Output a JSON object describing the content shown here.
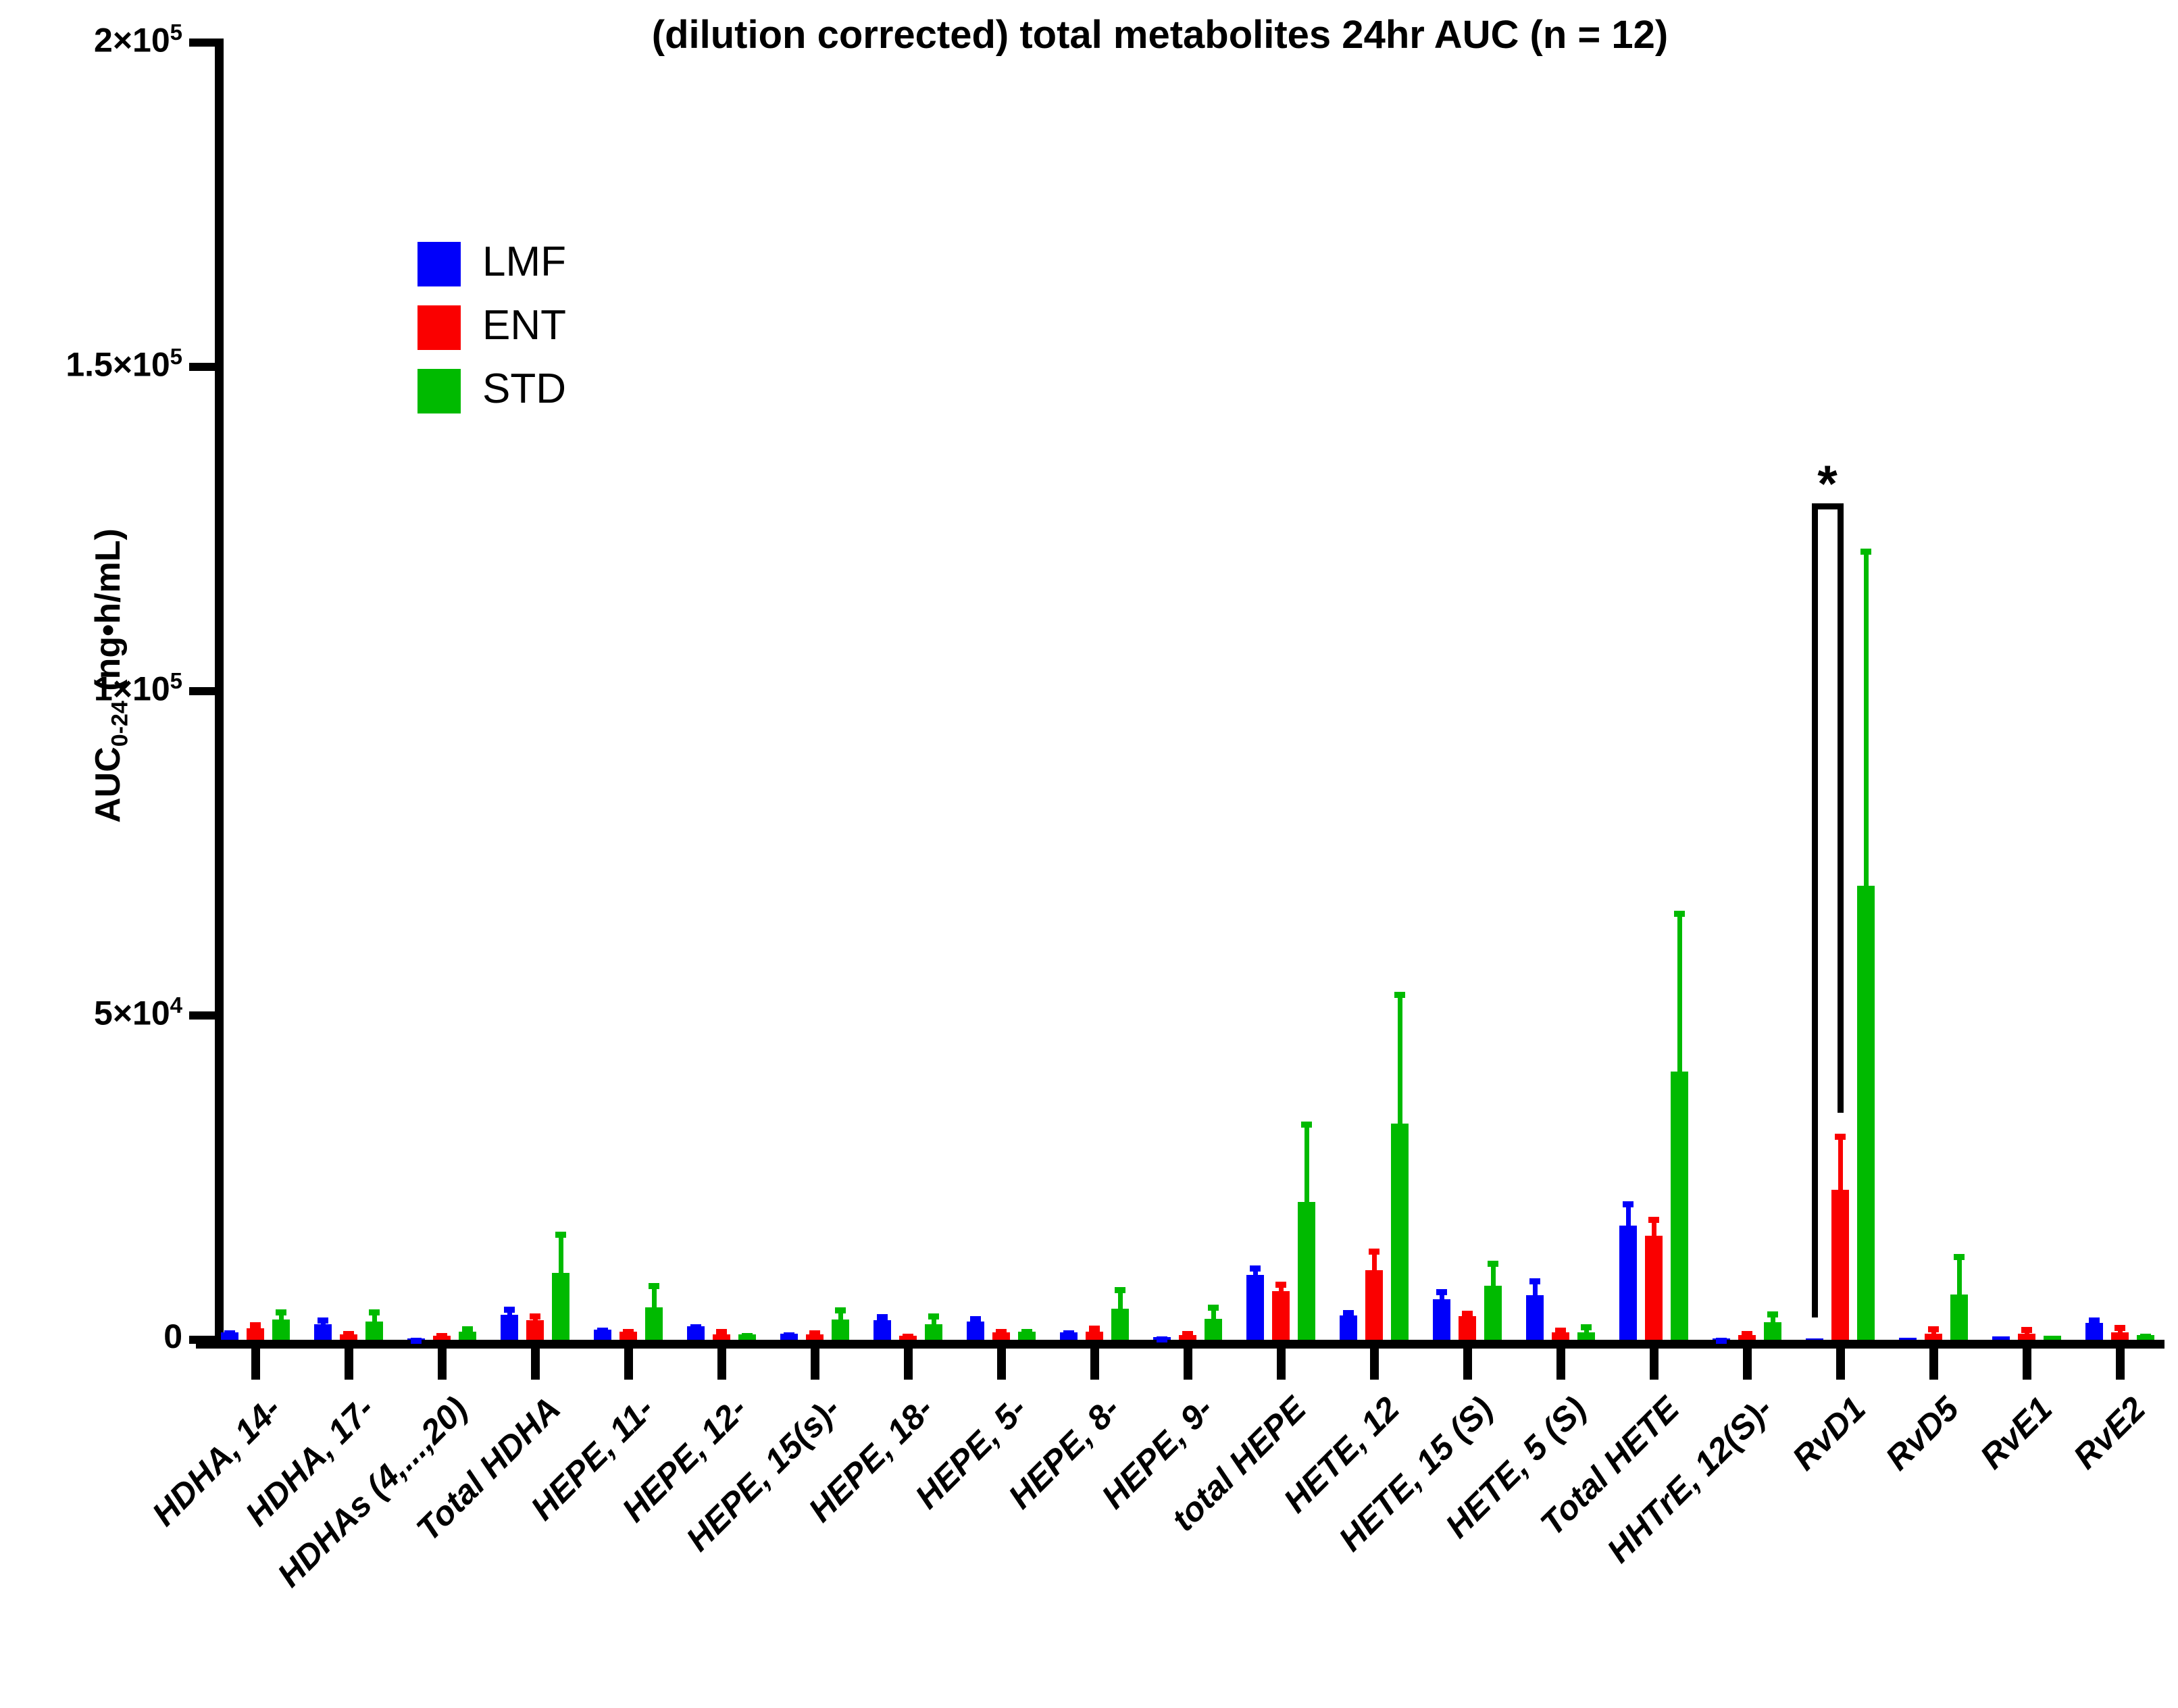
{
  "title": "(dilution corrected) total metabolites 24hr AUC (n = 12)",
  "legend": [
    {
      "name": "LMF",
      "color": "#0000FA"
    },
    {
      "name": "ENT",
      "color": "#FA0000"
    },
    {
      "name": "STD",
      "color": "#00BA00"
    }
  ],
  "y_axis": {
    "label_main": "AUC",
    "label_sub": "0-24",
    "label_rest": " (ng•h/mL)",
    "ticks": [
      {
        "value": 0,
        "base": "0",
        "exp": ""
      },
      {
        "value": 50000,
        "base": "5×10",
        "exp": "4"
      },
      {
        "value": 100000,
        "base": "1×10",
        "exp": "5"
      },
      {
        "value": 150000,
        "base": "1.5×10",
        "exp": "5"
      },
      {
        "value": 200000,
        "base": "2×10",
        "exp": "5"
      }
    ]
  },
  "chart_data": {
    "type": "bar",
    "title": "(dilution corrected) total metabolites 24hr AUC (n = 12)",
    "ylabel": "AUC0-24 (ng•h/mL)",
    "xlabel": "",
    "ylim": [
      0,
      200000
    ],
    "grid": false,
    "legend_position": "upper-left-inside",
    "error_bars": "sd-upper-only",
    "categories": [
      "HDHA, 14-",
      "HDHA, 17-",
      "HDHAs (4,...,20)",
      "Total HDHA",
      "HEPE, 11-",
      "HEPE, 12-",
      "HEPE, 15(s)-",
      "HEPE, 18-",
      "HEPE, 5-",
      "HEPE, 8-",
      "HEPE, 9-",
      "total HEPE",
      "HETE, 12",
      "HETE, 15 (S)",
      "HETE, 5 (S)",
      "Total HETE",
      "HHTrE, 12(S)-",
      "RvD1",
      "RvD5",
      "RvE1",
      "RvE2"
    ],
    "series": [
      {
        "name": "LMF",
        "color": "#0000FA",
        "values": [
          1100,
          2400,
          200,
          3900,
          1600,
          2100,
          900,
          3000,
          2800,
          1100,
          400,
          10000,
          3750,
          6250,
          6850,
          17600,
          250,
          150,
          300,
          500,
          2650
        ],
        "errors": [
          300,
          1000,
          100,
          1200,
          300,
          300,
          250,
          950,
          800,
          300,
          150,
          1450,
          800,
          1550,
          2600,
          3700,
          100,
          0,
          0,
          0,
          850
        ]
      },
      {
        "name": "ENT",
        "color": "#FA0000",
        "values": [
          1800,
          800,
          600,
          3000,
          1300,
          830,
          800,
          600,
          1100,
          1300,
          700,
          7500,
          10700,
          3650,
          1100,
          16000,
          700,
          23100,
          900,
          900,
          1100
        ],
        "errors": [
          900,
          500,
          400,
          1050,
          450,
          800,
          600,
          300,
          500,
          950,
          600,
          1450,
          3300,
          800,
          700,
          2900,
          600,
          8600,
          1100,
          1050,
          1150
        ]
      },
      {
        "name": "STD",
        "color": "#00BA00",
        "values": [
          3100,
          2800,
          1300,
          10300,
          5000,
          800,
          3100,
          2400,
          1200,
          4800,
          3200,
          21200,
          33300,
          8300,
          1100,
          41400,
          2700,
          70000,
          7000,
          600,
          700
        ],
        "errors": [
          1600,
          1900,
          850,
          6400,
          3700,
          200,
          1900,
          1650,
          400,
          3300,
          2200,
          12400,
          20300,
          3900,
          1200,
          24800,
          1700,
          52000,
          6200,
          0,
          250
        ]
      }
    ],
    "significance": {
      "label": "*",
      "category": "RvD1",
      "between": [
        "LMF",
        "ENT"
      ],
      "bracket_top_value": 129000,
      "left_leg_bottom_value": 3400,
      "right_leg_bottom_value": 35000
    }
  }
}
